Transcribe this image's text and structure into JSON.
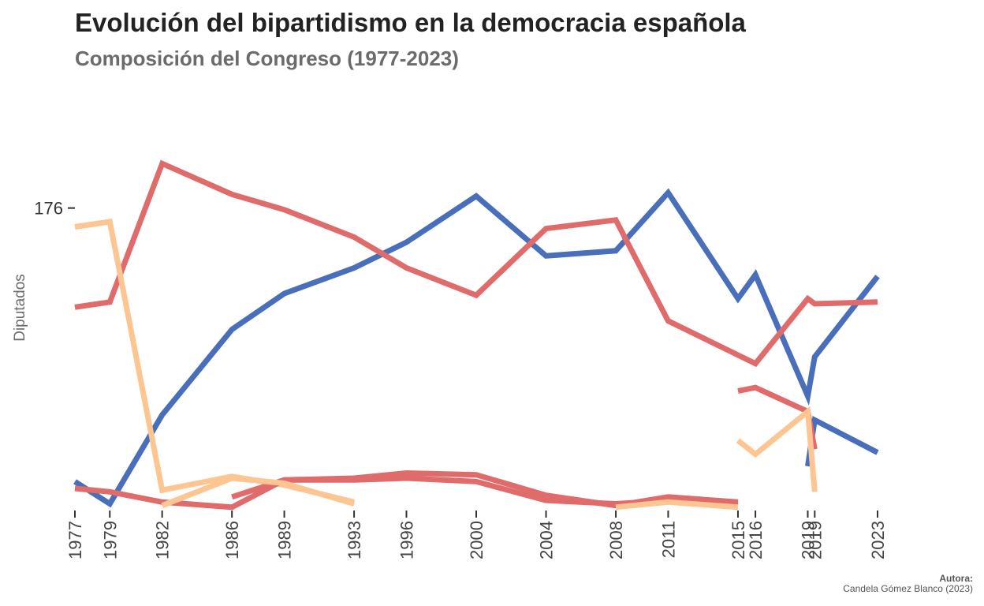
{
  "title": "Evolución del bipartidismo en la democracia española",
  "subtitle": "Composición del Congreso (1977-2023)",
  "caption": {
    "label": "Autora:",
    "text": "Candela Gómez Blanco (2023)"
  },
  "chart_data": {
    "type": "line",
    "ylabel": "Diputados",
    "ylim": [
      0,
      210
    ],
    "yticks": [
      176
    ],
    "x_ticks": [
      "1977",
      "1979",
      "1982",
      "1986",
      "1989",
      "1993",
      "1996",
      "2000",
      "2004",
      "2008",
      "2011",
      "2015",
      "2016",
      "2019",
      "2019",
      "2023"
    ],
    "colors": {
      "blue": "#4a6fba",
      "red": "#e06b6b",
      "peach": "#fdc591"
    },
    "series": [
      {
        "color": "blue",
        "points": [
          [
            1977.0,
            16
          ],
          [
            1979.0,
            3
          ],
          [
            1982.0,
            55
          ],
          [
            1986.0,
            105
          ],
          [
            1989.0,
            126
          ],
          [
            1993.0,
            141
          ],
          [
            1996.0,
            156
          ],
          [
            2000.0,
            183
          ],
          [
            2004.0,
            148
          ],
          [
            2008.0,
            151
          ],
          [
            2011.0,
            185
          ],
          [
            2015.0,
            123
          ],
          [
            2016.0,
            137
          ],
          [
            2019.0,
            66
          ],
          [
            2019.4,
            89
          ],
          [
            2023.0,
            136
          ]
        ]
      },
      {
        "color": "red",
        "points": [
          [
            1977.0,
            118
          ],
          [
            1979.0,
            121
          ],
          [
            1982.0,
            202
          ],
          [
            1986.0,
            184
          ],
          [
            1989.0,
            175
          ],
          [
            1993.0,
            159
          ],
          [
            1996.0,
            141
          ],
          [
            2000.0,
            125
          ],
          [
            2004.0,
            164
          ],
          [
            2008.0,
            169
          ],
          [
            2011.0,
            110
          ],
          [
            2015.0,
            90
          ],
          [
            2016.0,
            85
          ],
          [
            2019.0,
            123
          ],
          [
            2019.4,
            120
          ],
          [
            2023.0,
            121
          ]
        ]
      },
      {
        "color": "peach",
        "points": [
          [
            1977.0,
            165
          ],
          [
            1979.0,
            168
          ],
          [
            1982.0,
            11
          ],
          [
            1986.0,
            19
          ],
          [
            1989.0,
            14
          ],
          [
            1993.0,
            4
          ]
        ]
      },
      {
        "color": "blue",
        "points": [
          [
            2019.0,
            25
          ],
          [
            2019.4,
            52
          ],
          [
            2023.0,
            33
          ]
        ]
      },
      {
        "color": "red",
        "points": [
          [
            1977.0,
            12
          ],
          [
            1979.0,
            10
          ],
          [
            1982.0,
            4
          ],
          [
            1986.0,
            1
          ],
          [
            1989.0,
            17
          ],
          [
            1993.0,
            17
          ],
          [
            1996.0,
            18
          ],
          [
            2000.0,
            16
          ],
          [
            2004.0,
            5
          ],
          [
            2008.0,
            3
          ],
          [
            2011.0,
            5
          ],
          [
            2015.0,
            2
          ]
        ]
      },
      {
        "color": "red",
        "points": [
          [
            1986.0,
            7
          ],
          [
            1989.0,
            17
          ],
          [
            1993.0,
            18
          ],
          [
            1996.0,
            21
          ],
          [
            2000.0,
            20
          ],
          [
            2004.0,
            8
          ],
          [
            2008.0,
            2
          ],
          [
            2011.0,
            7
          ],
          [
            2015.0,
            4
          ]
        ]
      },
      {
        "color": "red",
        "points": [
          [
            2015.0,
            69
          ],
          [
            2016.0,
            71
          ],
          [
            2019.0,
            57
          ],
          [
            2019.4,
            35
          ]
        ]
      },
      {
        "color": "peach",
        "points": [
          [
            1982.0,
            2
          ],
          [
            1986.0,
            18
          ],
          [
            1989.0,
            15
          ],
          [
            1993.0,
            3
          ]
        ]
      },
      {
        "color": "peach",
        "points": [
          [
            2008.0,
            1
          ],
          [
            2011.0,
            4
          ],
          [
            2015.0,
            1
          ]
        ]
      },
      {
        "color": "peach",
        "points": [
          [
            2015.0,
            40
          ],
          [
            2016.0,
            32
          ],
          [
            2019.0,
            57
          ],
          [
            2019.4,
            10
          ]
        ]
      }
    ]
  }
}
